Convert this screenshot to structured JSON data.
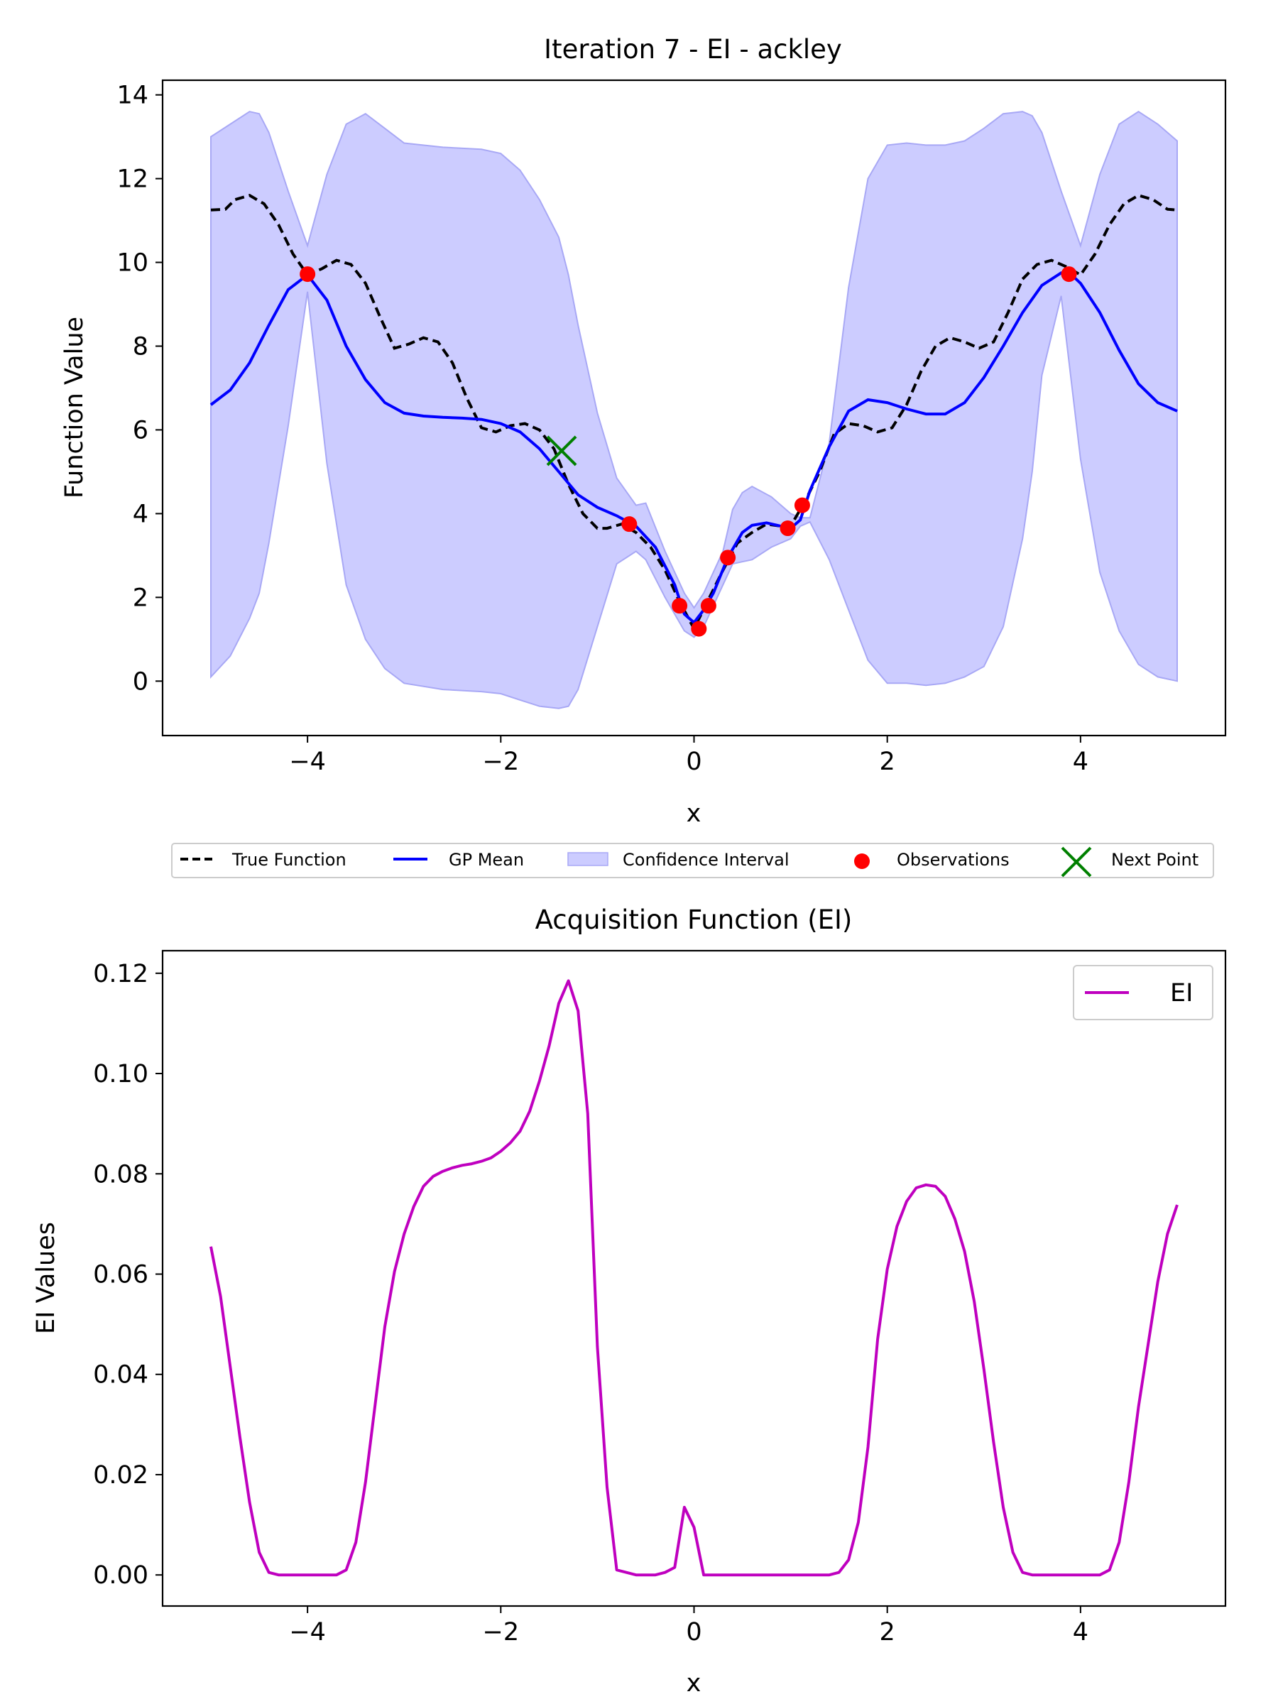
{
  "chart_data": [
    {
      "type": "line",
      "title": "Iteration 7 - EI - ackley",
      "xlabel": "x",
      "ylabel": "Function Value",
      "xlim": [
        -5.5,
        5.5
      ],
      "ylim": [
        -1.3,
        14.35
      ],
      "xticks": [
        -4,
        -2,
        0,
        2,
        4
      ],
      "xtick_labels": [
        "−4",
        "−2",
        "0",
        "2",
        "4"
      ],
      "yticks": [
        0,
        2,
        4,
        6,
        8,
        10,
        12,
        14
      ],
      "ytick_labels": [
        "0",
        "2",
        "4",
        "6",
        "8",
        "10",
        "12",
        "14"
      ],
      "grid": false,
      "legend": {
        "placement": "below plot",
        "entries": [
          "True Function",
          "GP Mean",
          "Confidence Interval",
          "Observations",
          "Next Point"
        ]
      },
      "colors": {
        "true_function": "#000000",
        "gp_mean": "#0000ff",
        "confidence_fill": "#ccccff",
        "confidence_edge": "#a8a8f5",
        "observations": "#ff0000",
        "next_point": "#008000"
      },
      "series": [
        {
          "name": "True Function",
          "style": "dashed",
          "x": [
            -5.0,
            -4.85,
            -4.75,
            -4.6,
            -4.45,
            -4.3,
            -4.15,
            -4.0,
            -3.85,
            -3.7,
            -3.55,
            -3.4,
            -3.25,
            -3.1,
            -2.95,
            -2.8,
            -2.65,
            -2.5,
            -2.35,
            -2.2,
            -2.05,
            -1.9,
            -1.75,
            -1.6,
            -1.45,
            -1.3,
            -1.15,
            -1.0,
            -0.9,
            -0.75,
            -0.6,
            -0.45,
            -0.3,
            -0.15,
            0.0,
            0.15,
            0.3,
            0.45,
            0.6,
            0.75,
            0.9,
            1.0,
            1.15,
            1.3,
            1.45,
            1.6,
            1.75,
            1.9,
            2.05,
            2.2,
            2.35,
            2.5,
            2.65,
            2.8,
            2.95,
            3.1,
            3.25,
            3.4,
            3.55,
            3.7,
            3.85,
            4.0,
            4.15,
            4.3,
            4.45,
            4.6,
            4.75,
            4.9,
            5.0
          ],
          "y": [
            11.25,
            11.27,
            11.5,
            11.6,
            11.4,
            10.9,
            10.2,
            9.7,
            9.85,
            10.05,
            9.95,
            9.5,
            8.7,
            7.95,
            8.05,
            8.2,
            8.1,
            7.6,
            6.75,
            6.05,
            5.95,
            6.1,
            6.15,
            6.0,
            5.55,
            4.7,
            4.0,
            3.65,
            3.65,
            3.75,
            3.55,
            3.2,
            2.65,
            1.9,
            1.25,
            1.95,
            2.65,
            3.3,
            3.55,
            3.75,
            3.7,
            3.7,
            4.3,
            5.0,
            5.9,
            6.15,
            6.1,
            5.95,
            6.05,
            6.6,
            7.4,
            8.0,
            8.2,
            8.1,
            7.95,
            8.1,
            8.8,
            9.6,
            9.95,
            10.05,
            9.9,
            9.7,
            10.2,
            10.9,
            11.4,
            11.6,
            11.5,
            11.27,
            11.25
          ]
        },
        {
          "name": "GP Mean",
          "style": "solid",
          "x": [
            -5.0,
            -4.8,
            -4.6,
            -4.4,
            -4.2,
            -4.0,
            -3.8,
            -3.6,
            -3.4,
            -3.2,
            -3.0,
            -2.8,
            -2.6,
            -2.4,
            -2.2,
            -2.0,
            -1.8,
            -1.6,
            -1.4,
            -1.2,
            -1.0,
            -0.8,
            -0.6,
            -0.4,
            -0.2,
            -0.1,
            0.0,
            0.1,
            0.2,
            0.35,
            0.5,
            0.6,
            0.75,
            0.9,
            1.0,
            1.1,
            1.2,
            1.4,
            1.6,
            1.8,
            2.0,
            2.2,
            2.4,
            2.6,
            2.8,
            3.0,
            3.2,
            3.4,
            3.6,
            3.8,
            3.9,
            4.0,
            4.2,
            4.4,
            4.6,
            4.8,
            5.0
          ],
          "y": [
            6.6,
            6.95,
            7.6,
            8.5,
            9.35,
            9.7,
            9.1,
            8.0,
            7.2,
            6.65,
            6.4,
            6.33,
            6.3,
            6.28,
            6.25,
            6.15,
            5.95,
            5.55,
            5.0,
            4.45,
            4.15,
            3.95,
            3.7,
            3.2,
            2.3,
            1.6,
            1.4,
            1.7,
            2.1,
            2.95,
            3.55,
            3.72,
            3.78,
            3.7,
            3.65,
            3.85,
            4.55,
            5.6,
            6.45,
            6.72,
            6.65,
            6.5,
            6.38,
            6.38,
            6.65,
            7.25,
            8.0,
            8.8,
            9.45,
            9.75,
            9.72,
            9.5,
            8.8,
            7.9,
            7.1,
            6.65,
            6.45
          ]
        },
        {
          "name": "Confidence Interval",
          "style": "band",
          "x": [
            -5.0,
            -4.8,
            -4.6,
            -4.5,
            -4.4,
            -4.2,
            -4.0,
            -3.8,
            -3.6,
            -3.4,
            -3.2,
            -3.0,
            -2.6,
            -2.2,
            -2.0,
            -1.8,
            -1.6,
            -1.4,
            -1.3,
            -1.2,
            -1.0,
            -0.8,
            -0.6,
            -0.5,
            -0.3,
            -0.1,
            0.0,
            0.1,
            0.3,
            0.4,
            0.5,
            0.6,
            0.8,
            1.0,
            1.1,
            1.2,
            1.4,
            1.6,
            1.8,
            2.0,
            2.2,
            2.4,
            2.6,
            2.8,
            3.0,
            3.2,
            3.4,
            3.5,
            3.6,
            3.8,
            4.0,
            4.2,
            4.4,
            4.6,
            4.8,
            5.0
          ],
          "upper": [
            13.0,
            13.3,
            13.6,
            13.55,
            13.1,
            11.7,
            10.4,
            12.1,
            13.3,
            13.55,
            13.2,
            12.85,
            12.75,
            12.7,
            12.6,
            12.2,
            11.5,
            10.6,
            9.7,
            8.5,
            6.4,
            4.85,
            4.2,
            4.25,
            3.1,
            2.1,
            1.75,
            2.1,
            3.1,
            4.1,
            4.5,
            4.65,
            4.4,
            4.0,
            3.9,
            3.9,
            5.7,
            9.4,
            12.0,
            12.8,
            12.85,
            12.8,
            12.8,
            12.9,
            13.2,
            13.55,
            13.6,
            13.5,
            13.1,
            11.7,
            10.4,
            12.1,
            13.3,
            13.6,
            13.3,
            12.9
          ],
          "lower": [
            0.1,
            0.6,
            1.5,
            2.1,
            3.3,
            6.1,
            9.3,
            5.2,
            2.3,
            1.0,
            0.3,
            -0.05,
            -0.2,
            -0.25,
            -0.3,
            -0.45,
            -0.6,
            -0.65,
            -0.6,
            -0.2,
            1.3,
            2.8,
            3.1,
            2.9,
            2.0,
            1.2,
            1.05,
            1.3,
            2.3,
            2.8,
            2.85,
            2.9,
            3.2,
            3.4,
            3.7,
            3.8,
            2.9,
            1.7,
            0.5,
            -0.05,
            -0.05,
            -0.1,
            -0.05,
            0.1,
            0.35,
            1.3,
            3.4,
            5.0,
            7.3,
            9.2,
            5.3,
            2.6,
            1.2,
            0.4,
            0.1,
            0.0
          ]
        },
        {
          "name": "Observations",
          "style": "markers",
          "x": [
            -4.0,
            -0.67,
            -0.15,
            0.05,
            0.15,
            0.35,
            0.97,
            1.12,
            3.88
          ],
          "y": [
            9.72,
            3.75,
            1.8,
            1.25,
            1.8,
            2.95,
            3.65,
            4.2,
            9.72
          ]
        },
        {
          "name": "Next Point",
          "style": "x-marker",
          "x": [
            -1.37
          ],
          "y": [
            5.5
          ]
        }
      ]
    },
    {
      "type": "line",
      "title": "Acquisition Function (EI)",
      "xlabel": "x",
      "ylabel": "EI Values",
      "xlim": [
        -5.5,
        5.5
      ],
      "ylim": [
        -0.0062,
        0.1245
      ],
      "xticks": [
        -4,
        -2,
        0,
        2,
        4
      ],
      "xtick_labels": [
        "−4",
        "−2",
        "0",
        "2",
        "4"
      ],
      "yticks": [
        0.0,
        0.02,
        0.04,
        0.06,
        0.08,
        0.1,
        0.12
      ],
      "ytick_labels": [
        "0.00",
        "0.02",
        "0.04",
        "0.06",
        "0.08",
        "0.10",
        "0.12"
      ],
      "grid": false,
      "legend": {
        "placement": "top-right",
        "entries": [
          "EI"
        ]
      },
      "colors": {
        "ei": "#bf00bf"
      },
      "series": [
        {
          "name": "EI",
          "x": [
            -5.0,
            -4.9,
            -4.8,
            -4.7,
            -4.6,
            -4.5,
            -4.4,
            -4.3,
            -4.2,
            -4.0,
            -3.8,
            -3.7,
            -3.6,
            -3.5,
            -3.4,
            -3.3,
            -3.2,
            -3.1,
            -3.0,
            -2.9,
            -2.8,
            -2.7,
            -2.6,
            -2.5,
            -2.4,
            -2.3,
            -2.2,
            -2.1,
            -2.0,
            -1.9,
            -1.8,
            -1.7,
            -1.6,
            -1.5,
            -1.4,
            -1.3,
            -1.2,
            -1.1,
            -1.0,
            -0.9,
            -0.8,
            -0.6,
            -0.4,
            -0.3,
            -0.2,
            -0.1,
            0.0,
            0.1,
            0.2,
            0.4,
            0.6,
            0.8,
            1.0,
            1.2,
            1.4,
            1.5,
            1.6,
            1.7,
            1.8,
            1.9,
            2.0,
            2.1,
            2.2,
            2.3,
            2.4,
            2.5,
            2.6,
            2.7,
            2.8,
            2.9,
            3.0,
            3.1,
            3.2,
            3.3,
            3.4,
            3.5,
            3.6,
            3.8,
            4.0,
            4.2,
            4.3,
            4.4,
            4.5,
            4.6,
            4.7,
            4.8,
            4.9,
            5.0
          ],
          "y": [
            0.0655,
            0.0555,
            0.0415,
            0.0275,
            0.0145,
            0.0045,
            0.0005,
            0.0,
            0.0,
            0.0,
            0.0,
            0.0,
            0.001,
            0.0065,
            0.0185,
            0.034,
            0.0495,
            0.0605,
            0.068,
            0.0735,
            0.0775,
            0.0795,
            0.0805,
            0.0812,
            0.0817,
            0.082,
            0.0825,
            0.0832,
            0.0845,
            0.0862,
            0.0885,
            0.0925,
            0.0985,
            0.1055,
            0.114,
            0.1185,
            0.1125,
            0.092,
            0.0455,
            0.0175,
            0.001,
            0.0,
            0.0,
            0.0005,
            0.0015,
            0.0135,
            0.0095,
            0.0,
            0.0,
            0.0,
            0.0,
            0.0,
            0.0,
            0.0,
            0.0,
            0.0005,
            0.003,
            0.0105,
            0.0255,
            0.047,
            0.061,
            0.0695,
            0.0745,
            0.0772,
            0.0778,
            0.0775,
            0.0755,
            0.071,
            0.0645,
            0.0545,
            0.041,
            0.0265,
            0.0135,
            0.0045,
            0.0005,
            0.0,
            0.0,
            0.0,
            0.0,
            0.0,
            0.001,
            0.0065,
            0.0185,
            0.0335,
            0.046,
            0.0585,
            0.068,
            0.0738
          ]
        }
      ]
    }
  ]
}
